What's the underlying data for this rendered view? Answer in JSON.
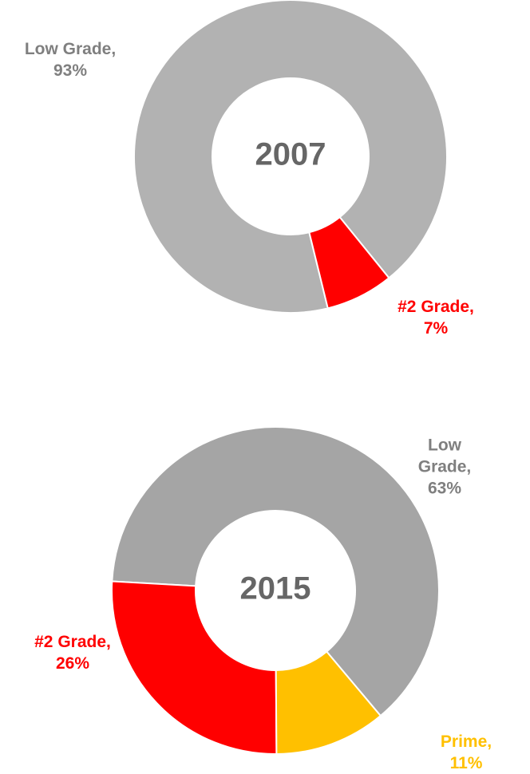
{
  "chart_data": [
    {
      "type": "donut",
      "title": "2007",
      "values": [
        93,
        7
      ],
      "value_labels": [
        "Low Grade,\n93%",
        "#2 Grade, 7%"
      ],
      "colors": [
        "#b2b2b2",
        "#ff0000"
      ],
      "label_colors": [
        "#7f7f7f",
        "#ff0000"
      ]
    },
    {
      "type": "donut",
      "title": "2015",
      "values": [
        63,
        26,
        11
      ],
      "value_labels": [
        "Low Grade,\n63%",
        "#2 Grade,\n26%",
        "Prime, 11%"
      ],
      "colors": [
        "#a5a5a5",
        "#ff0000",
        "#ffc000"
      ],
      "label_colors": [
        "#7f7f7f",
        "#ff0000",
        "#ffc000"
      ]
    }
  ]
}
